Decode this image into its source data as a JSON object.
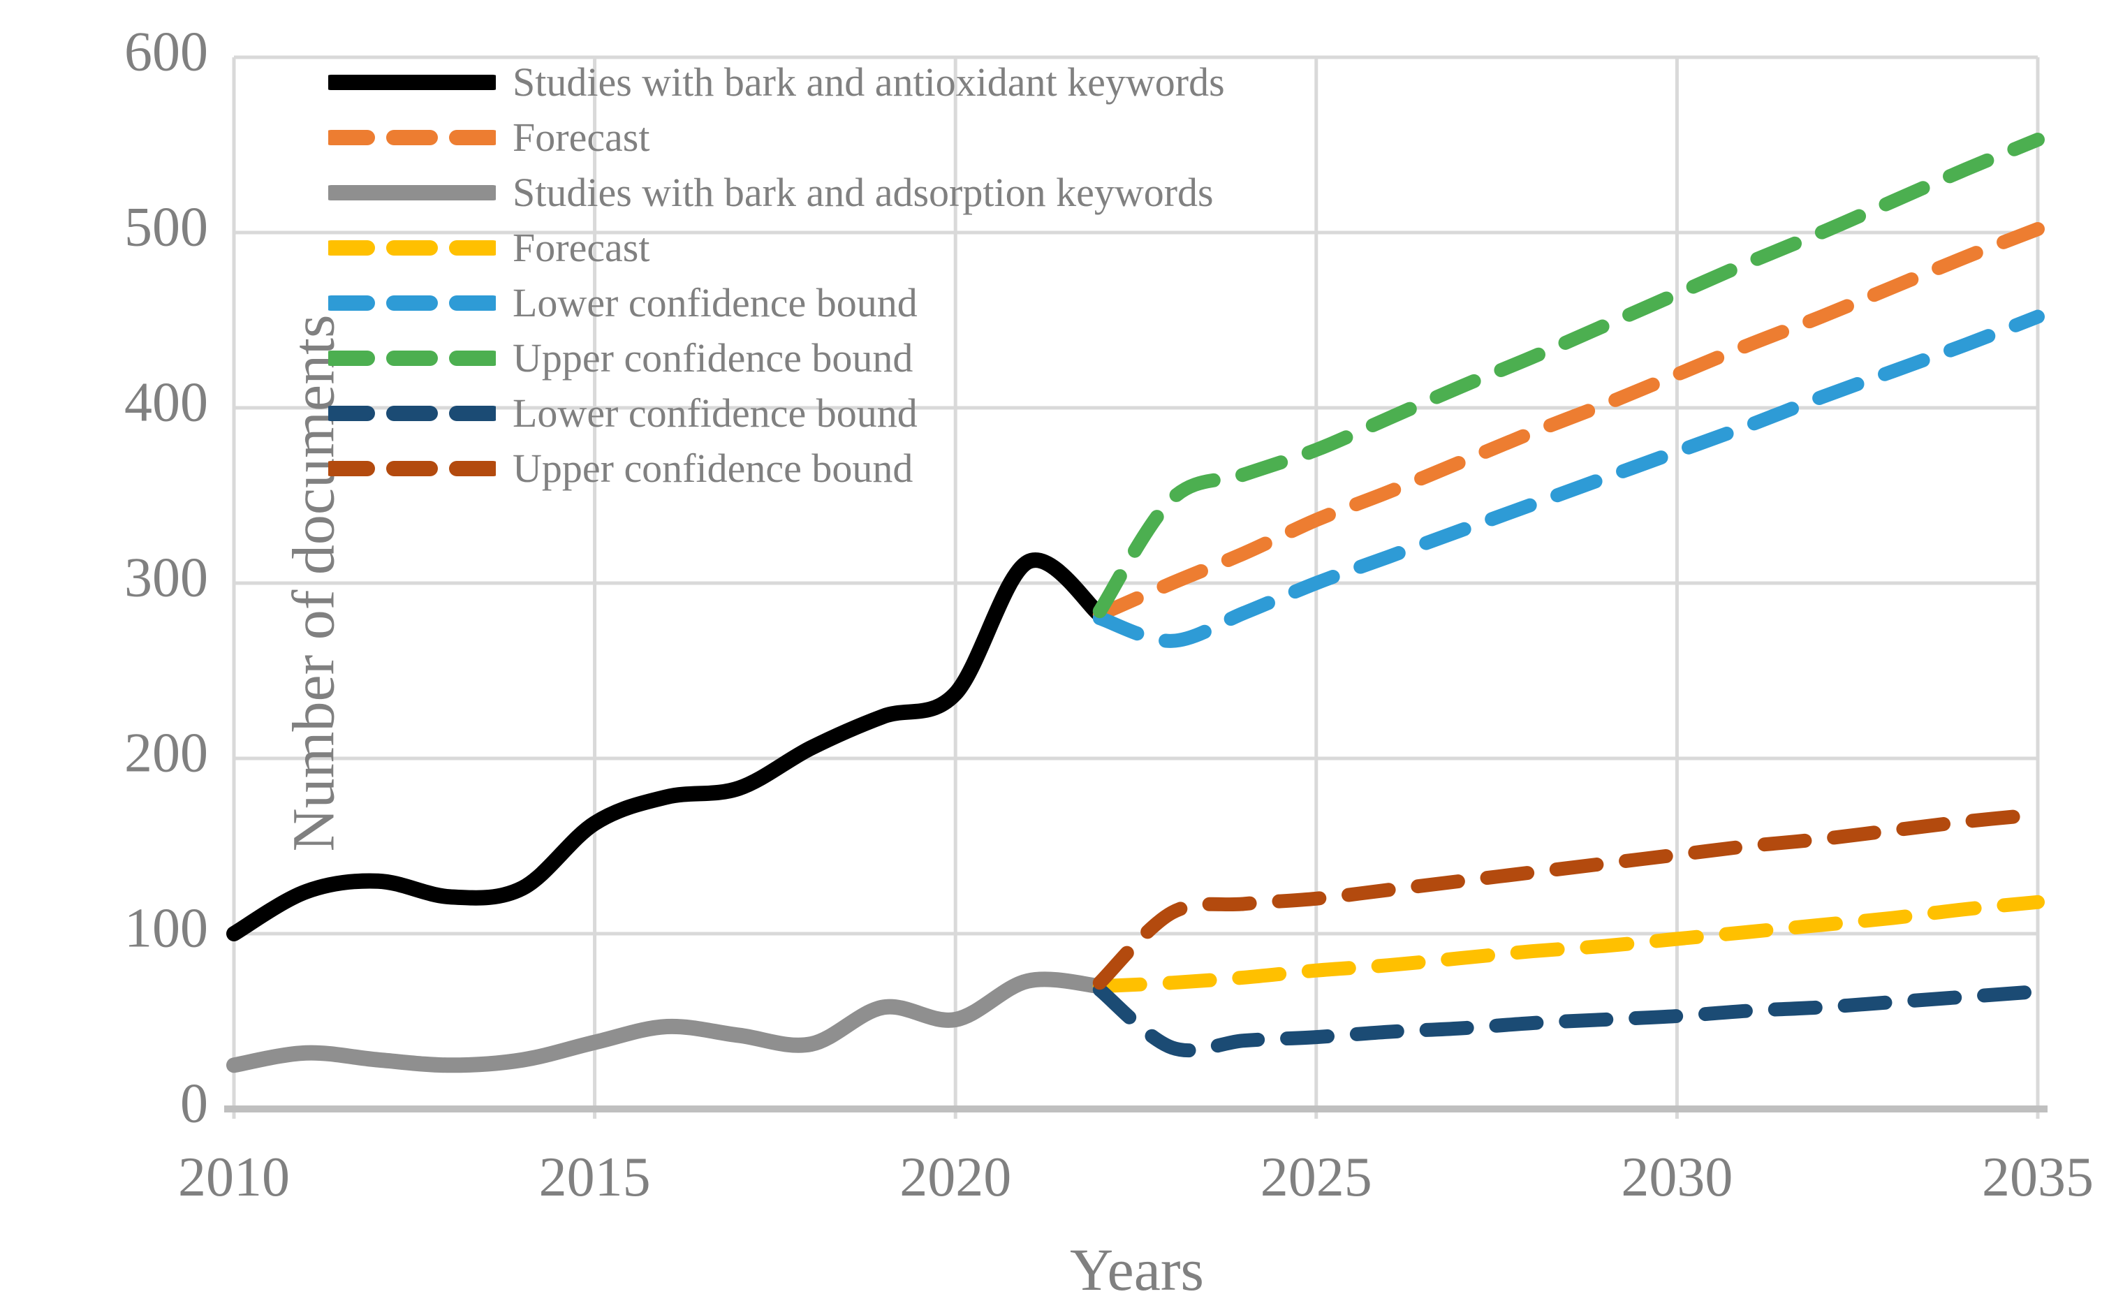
{
  "chart_data": {
    "type": "line",
    "title": "",
    "xlabel": "Years",
    "ylabel": "Number of documents",
    "xlim": [
      2010,
      2035
    ],
    "ylim": [
      0,
      600
    ],
    "x_ticks": [
      2010,
      2015,
      2020,
      2025,
      2030,
      2035
    ],
    "y_ticks": [
      0,
      100,
      200,
      300,
      400,
      500,
      600
    ],
    "grid": true,
    "legend_position": "top-left-inside",
    "series": [
      {
        "name": "Studies with bark and antioxidant keywords",
        "color": "#000000",
        "style": "solid",
        "x": [
          2010,
          2011,
          2012,
          2013,
          2014,
          2015,
          2016,
          2017,
          2018,
          2019,
          2020,
          2021,
          2022
        ],
        "values": [
          100,
          124,
          130,
          121,
          126,
          163,
          178,
          183,
          206,
          224,
          237,
          312,
          282
        ]
      },
      {
        "name": "Forecast",
        "color": "#ED7D31",
        "style": "dashed",
        "x": [
          2022,
          2023,
          2024,
          2025,
          2026,
          2027,
          2028,
          2029,
          2030,
          2031,
          2032,
          2033,
          2034,
          2035
        ],
        "values": [
          282,
          300,
          317,
          336,
          352,
          369,
          386,
          402,
          419,
          436,
          452,
          469,
          486,
          502
        ]
      },
      {
        "name": "Studies with bark and adsorption keywords",
        "color": "#8F8F8F",
        "style": "solid",
        "x": [
          2010,
          2011,
          2012,
          2013,
          2014,
          2015,
          2016,
          2017,
          2018,
          2019,
          2020,
          2021,
          2022
        ],
        "values": [
          25,
          32,
          28,
          25,
          28,
          38,
          47,
          42,
          37,
          58,
          51,
          73,
          70
        ]
      },
      {
        "name": "Forecast",
        "color": "#FFC000",
        "style": "dashed",
        "x": [
          2022,
          2023,
          2024,
          2025,
          2026,
          2027,
          2028,
          2029,
          2030,
          2031,
          2032,
          2033,
          2034,
          2035
        ],
        "values": [
          70,
          72,
          75,
          79,
          82,
          86,
          90,
          93,
          97,
          101,
          105,
          109,
          114,
          118
        ]
      },
      {
        "name": "Lower confidence bound",
        "color": "#2E9BD6",
        "style": "dashed",
        "x": [
          2022,
          2023,
          2024,
          2025,
          2026,
          2027,
          2028,
          2029,
          2030,
          2031,
          2032,
          2033,
          2034,
          2035
        ],
        "values": [
          280,
          267,
          283,
          300,
          315,
          330,
          345,
          360,
          375,
          390,
          406,
          421,
          436,
          452
        ]
      },
      {
        "name": "Upper confidence bound",
        "color": "#4CAF50",
        "style": "dashed",
        "x": [
          2022,
          2023,
          2024,
          2025,
          2026,
          2027,
          2028,
          2029,
          2030,
          2031,
          2032,
          2033,
          2034,
          2035
        ],
        "values": [
          284,
          348,
          362,
          376,
          394,
          412,
          429,
          447,
          465,
          483,
          500,
          518,
          536,
          553
        ]
      },
      {
        "name": "Lower confidence bound",
        "color": "#1B4B74",
        "style": "dashed",
        "x": [
          2022,
          2023,
          2024,
          2025,
          2026,
          2027,
          2028,
          2029,
          2030,
          2031,
          2032,
          2033,
          2034,
          2035
        ],
        "values": [
          68,
          35,
          39,
          41,
          44,
          46,
          49,
          51,
          53,
          56,
          58,
          61,
          64,
          67
        ]
      },
      {
        "name": "Upper confidence bound",
        "color": "#B34A0E",
        "style": "dashed",
        "x": [
          2022,
          2023,
          2024,
          2025,
          2026,
          2027,
          2028,
          2029,
          2030,
          2031,
          2032,
          2033,
          2034,
          2035
        ],
        "values": [
          72,
          112,
          117,
          120,
          125,
          130,
          135,
          140,
          145,
          150,
          154,
          159,
          164,
          168
        ]
      }
    ]
  },
  "axes": {
    "x_title": "Years",
    "y_title": "Number of documents"
  },
  "legend": {
    "items": [
      {
        "label": "Studies with bark and antioxidant keywords",
        "color": "#000000",
        "style": "solid"
      },
      {
        "label": "Forecast",
        "color": "#ED7D31",
        "style": "dashed"
      },
      {
        "label": "Studies with bark and adsorption keywords",
        "color": "#8F8F8F",
        "style": "solid"
      },
      {
        "label": "Forecast",
        "color": "#FFC000",
        "style": "dashed"
      },
      {
        "label": "Lower confidence bound",
        "color": "#2E9BD6",
        "style": "dashed"
      },
      {
        "label": "Upper confidence bound",
        "color": "#4CAF50",
        "style": "dashed"
      },
      {
        "label": "Lower confidence bound",
        "color": "#1B4B74",
        "style": "dashed"
      },
      {
        "label": "Upper confidence bound",
        "color": "#B34A0E",
        "style": "dashed"
      }
    ]
  },
  "style_colors": {
    "grid": "#D9D9D9",
    "axis_line": "#BFBFBF",
    "text": "#808080",
    "background": "#FFFFFF"
  }
}
